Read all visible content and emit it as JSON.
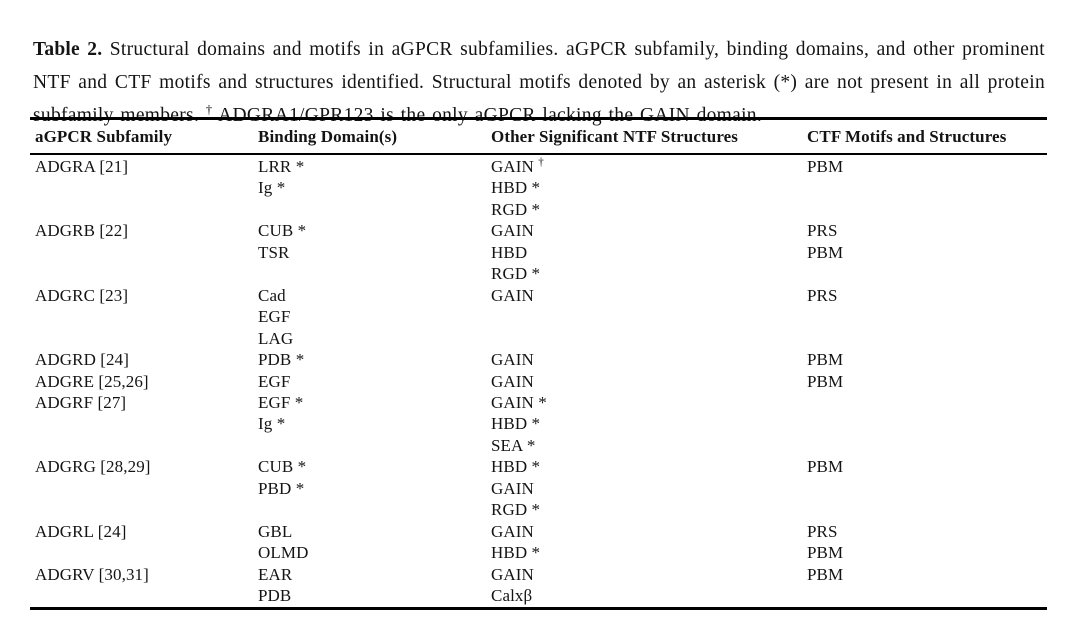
{
  "colors": {
    "background": "#ffffff",
    "text": "#141414",
    "rule": "#000000"
  },
  "caption": {
    "label": "Table 2.",
    "body_before_dagger": " Structural domains and motifs in aGPCR subfamilies. aGPCR subfamily, binding domains, and other prominent NTF and CTF motifs and structures identified. Structural motifs denoted by an asterisk (*) are not present in all protein subfamily members. ",
    "dagger": "†",
    "body_after_dagger": " ADGRA1/GPR123 is the only aGPCR lacking the GAIN domain."
  },
  "table": {
    "columns": [
      "aGPCR Subfamily",
      "Binding Domain(s)",
      "Other Significant NTF Structures",
      "CTF Motifs and Structures"
    ],
    "rows": [
      {
        "subfamily": "ADGRA [21]",
        "binding": [
          "LRR *",
          "Ig *"
        ],
        "ntf": [
          "GAIN †",
          "HBD *",
          "RGD *"
        ],
        "ctf": [
          "PBM"
        ]
      },
      {
        "subfamily": "ADGRB [22]",
        "binding": [
          "CUB *",
          "TSR"
        ],
        "ntf": [
          "GAIN",
          "HBD",
          "RGD *"
        ],
        "ctf": [
          "PRS",
          "PBM"
        ]
      },
      {
        "subfamily": "ADGRC [23]",
        "binding": [
          "Cad",
          "EGF",
          "LAG"
        ],
        "ntf": [
          "GAIN"
        ],
        "ctf": [
          "PRS"
        ]
      },
      {
        "subfamily": "ADGRD [24]",
        "binding": [
          "PDB *"
        ],
        "ntf": [
          "GAIN"
        ],
        "ctf": [
          "PBM"
        ]
      },
      {
        "subfamily": "ADGRE [25,26]",
        "binding": [
          "EGF"
        ],
        "ntf": [
          "GAIN"
        ],
        "ctf": [
          "PBM"
        ]
      },
      {
        "subfamily": "ADGRF [27]",
        "binding": [
          "EGF *",
          "Ig *"
        ],
        "ntf": [
          "GAIN *",
          "HBD *",
          "SEA *"
        ],
        "ctf": []
      },
      {
        "subfamily": "ADGRG [28,29]",
        "binding": [
          "CUB *",
          "PBD *"
        ],
        "ntf": [
          "HBD *",
          "GAIN",
          "RGD *"
        ],
        "ctf": [
          "PBM"
        ]
      },
      {
        "subfamily": "ADGRL [24]",
        "binding": [
          "GBL",
          "OLMD"
        ],
        "ntf": [
          "GAIN",
          "HBD *"
        ],
        "ctf": [
          "PRS",
          "PBM"
        ]
      },
      {
        "subfamily": "ADGRV [30,31]",
        "binding": [
          "EAR",
          "PDB"
        ],
        "ntf": [
          "GAIN",
          "Calxβ"
        ],
        "ctf": [
          "PBM"
        ]
      }
    ]
  }
}
